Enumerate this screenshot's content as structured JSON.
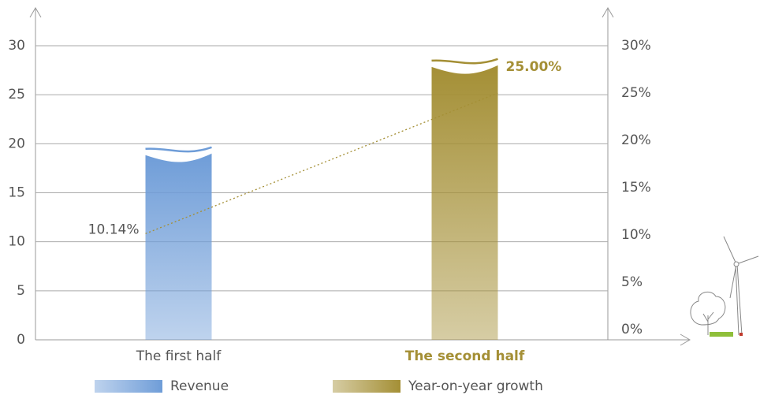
{
  "chart_data": {
    "type": "bar",
    "categories": [
      "The first half",
      "The second half"
    ],
    "highlight_category": 1,
    "highlight_color": "#a48f35",
    "bar_colors": [
      "#6f9dd8",
      "#a48f35"
    ],
    "series": [
      {
        "name": "Revenue",
        "type": "bar",
        "color": "#6f9dd8",
        "values": [
          19,
          28
        ]
      },
      {
        "name": "Year-on-year growth",
        "type": "line",
        "axis": "y2",
        "color": "#a48f35",
        "values": [
          10.14,
          25.0
        ],
        "value_labels": [
          "10.14%",
          "25.00%"
        ]
      }
    ],
    "ylim": [
      0,
      30
    ],
    "yticks": [
      0,
      5,
      10,
      15,
      20,
      25,
      30
    ],
    "y2lim": [
      0,
      30
    ],
    "y2ticks": [
      {
        "value": 0,
        "label": "0%"
      },
      {
        "value": 5,
        "label": "5%"
      },
      {
        "value": 10,
        "label": "10%"
      },
      {
        "value": 15,
        "label": "15%"
      },
      {
        "value": 20,
        "label": "20%"
      },
      {
        "value": 25,
        "label": "25%"
      },
      {
        "value": 30,
        "label": "30%"
      }
    ],
    "grid": true
  }
}
